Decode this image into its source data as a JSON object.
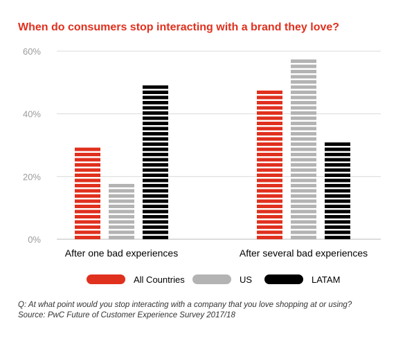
{
  "chart_data": {
    "type": "bar",
    "title": "When do consumers stop interacting with a brand they love?",
    "categories": [
      "After one bad experiences",
      "After several bad experiences"
    ],
    "series": [
      {
        "name": "All Countries",
        "color": "#e0301e",
        "values": [
          30,
          48
        ]
      },
      {
        "name": "US",
        "color": "#b3b3b3",
        "values": [
          18,
          58
        ]
      },
      {
        "name": "LATAM",
        "color": "#000000",
        "values": [
          50,
          32
        ]
      }
    ],
    "ylim": [
      0,
      60
    ],
    "yticks": [
      0,
      20,
      40,
      60
    ],
    "ytick_labels": [
      "0%",
      "20%",
      "40%",
      "60%"
    ],
    "grid": true,
    "legend": "bottom"
  },
  "footnote": {
    "question": "Q: At what point would you stop interacting with a company that you love shopping at or using?",
    "source": "Source: PwC Future of Customer Experience Survey 2017/18"
  }
}
